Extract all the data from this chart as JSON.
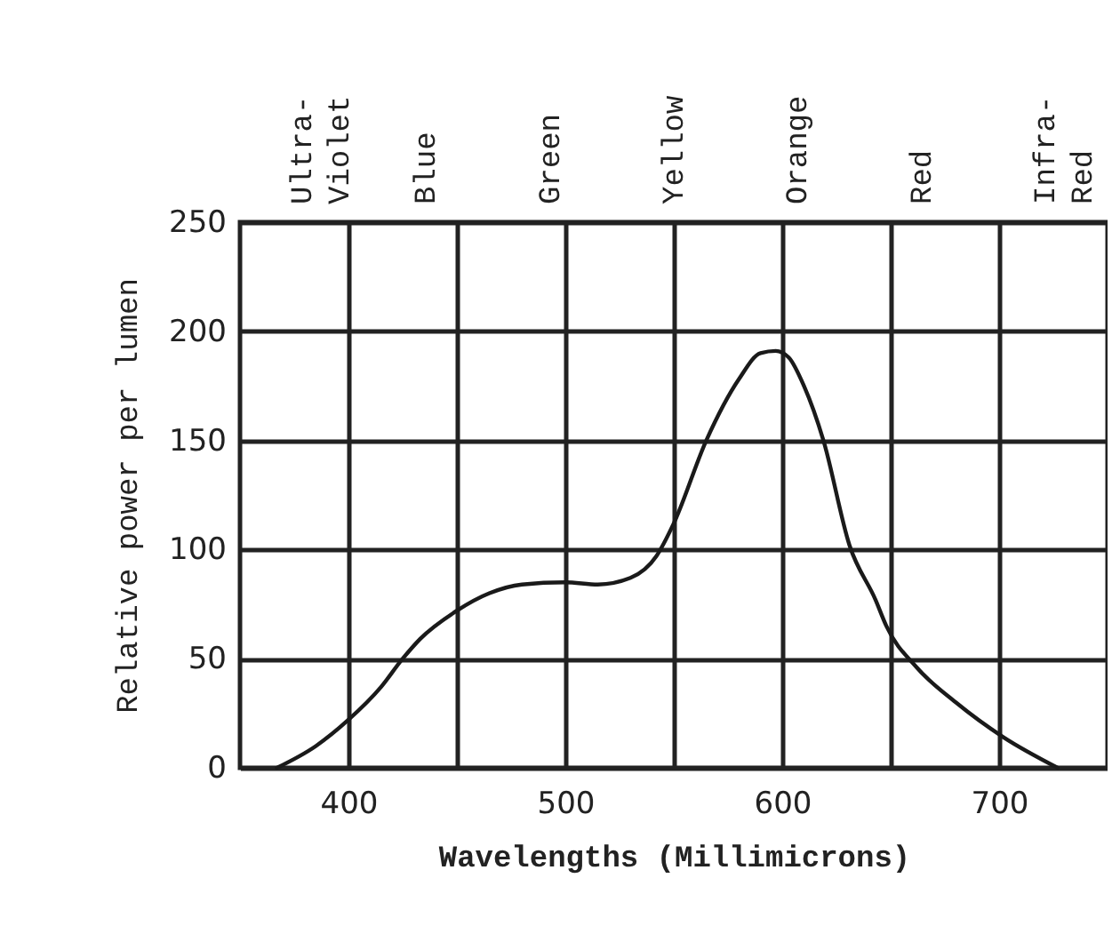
{
  "chart_data": {
    "type": "line",
    "xlabel": "Wavelengths (Millimicrons)",
    "ylabel": "Relative power per lumen",
    "x": [
      367,
      385,
      400,
      415,
      425,
      433,
      450,
      465,
      480,
      500,
      515,
      530,
      542,
      550,
      565,
      580,
      590,
      597,
      603,
      610,
      619,
      631,
      643,
      648,
      662,
      680,
      702,
      727
    ],
    "series": [
      {
        "color": "#1a1a1a",
        "values": [
          0,
          10,
          22,
          37,
          50,
          59,
          72,
          80,
          84,
          85,
          84,
          87,
          97,
          112,
          150,
          178,
          190,
          191,
          188,
          175,
          150,
          102,
          77,
          65,
          46,
          30,
          14,
          0
        ]
      }
    ],
    "xlim": [
      350,
      750
    ],
    "xticks": [
      400,
      {
        "value": 450,
        "label": null
      },
      500,
      {
        "value": 550,
        "label": null
      },
      600,
      {
        "value": 650,
        "label": null
      },
      700
    ],
    "ylim": [
      0,
      250
    ],
    "yticks": [
      0,
      50,
      100,
      150,
      200,
      250
    ],
    "annotations": [
      "Ultra-\nViolet",
      "Blue",
      "Green",
      "Yellow",
      "Orange",
      "Red",
      "Infra-\nRed"
    ],
    "grid": true,
    "marker": "none",
    "line_style": "solid"
  }
}
